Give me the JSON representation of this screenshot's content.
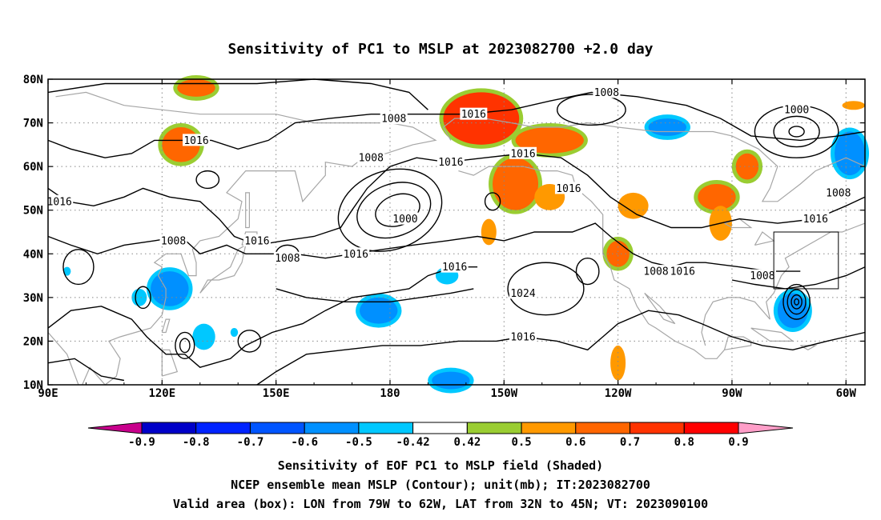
{
  "title": "Sensitivity of PC1 to MSLP at 2023082700 +2.0 day",
  "map": {
    "lon_range": [
      90,
      305
    ],
    "lat_range": [
      10,
      80
    ],
    "lon_ticks": [
      {
        "lon": 90,
        "label": "90E"
      },
      {
        "lon": 120,
        "label": "120E"
      },
      {
        "lon": 150,
        "label": "150E"
      },
      {
        "lon": 180,
        "label": "180"
      },
      {
        "lon": 210,
        "label": "150W"
      },
      {
        "lon": 240,
        "label": "120W"
      },
      {
        "lon": 270,
        "label": "90W"
      },
      {
        "lon": 300,
        "label": "60W"
      }
    ],
    "lat_ticks": [
      {
        "lat": 10,
        "label": "10N"
      },
      {
        "lat": 20,
        "label": "20N"
      },
      {
        "lat": 30,
        "label": "30N"
      },
      {
        "lat": 40,
        "label": "40N"
      },
      {
        "lat": 50,
        "label": "50N"
      },
      {
        "lat": 60,
        "label": "60N"
      },
      {
        "lat": 70,
        "label": "70N"
      },
      {
        "lat": 80,
        "label": "80N"
      }
    ],
    "gridlines": "dotted",
    "valid_box": {
      "lon_min": 281,
      "lon_max": 298,
      "lat_min": 32,
      "lat_max": 45
    },
    "contour_labels": [
      {
        "text": "1008",
        "lon": 181,
        "lat": 71
      },
      {
        "text": "1008",
        "lon": 123,
        "lat": 43
      },
      {
        "text": "1008",
        "lon": 153,
        "lat": 39
      },
      {
        "text": "1008",
        "lon": 175,
        "lat": 62
      },
      {
        "text": "1008",
        "lon": 237,
        "lat": 77
      },
      {
        "text": "1008",
        "lon": 250,
        "lat": 36
      },
      {
        "text": "1008",
        "lon": 278,
        "lat": 35
      },
      {
        "text": "1008",
        "lon": 298,
        "lat": 54
      },
      {
        "text": "1016",
        "lon": 129,
        "lat": 66
      },
      {
        "text": "1016",
        "lon": 93,
        "lat": 52
      },
      {
        "text": "1016",
        "lon": 145,
        "lat": 43
      },
      {
        "text": "1016",
        "lon": 171,
        "lat": 40
      },
      {
        "text": "1016",
        "lon": 202,
        "lat": 72
      },
      {
        "text": "1016",
        "lon": 196,
        "lat": 61
      },
      {
        "text": "1016",
        "lon": 215,
        "lat": 63
      },
      {
        "text": "1016",
        "lon": 227,
        "lat": 55
      },
      {
        "text": "1016",
        "lon": 197,
        "lat": 37
      },
      {
        "text": "1016",
        "lon": 215,
        "lat": 21
      },
      {
        "text": "1016",
        "lon": 257,
        "lat": 36
      },
      {
        "text": "1016",
        "lon": 292,
        "lat": 48
      },
      {
        "text": "1000",
        "lon": 184,
        "lat": 48
      },
      {
        "text": "1000",
        "lon": 287,
        "lat": 73
      },
      {
        "text": "1024",
        "lon": 215,
        "lat": 31
      }
    ],
    "shaded_regions": [
      {
        "lon": 125,
        "lat": 65,
        "rx": 5,
        "ry": 4,
        "value": 0.6
      },
      {
        "lon": 129,
        "lat": 78,
        "rx": 5,
        "ry": 2,
        "value": 0.6
      },
      {
        "lon": 204,
        "lat": 71,
        "rx": 10,
        "ry": 6,
        "value": 0.7
      },
      {
        "lon": 222,
        "lat": 66,
        "rx": 9,
        "ry": 3,
        "value": 0.6
      },
      {
        "lon": 213,
        "lat": 56,
        "rx": 6,
        "ry": 6,
        "value": 0.6
      },
      {
        "lon": 222,
        "lat": 53,
        "rx": 4,
        "ry": 3,
        "value": 0.5
      },
      {
        "lon": 244,
        "lat": 51,
        "rx": 4,
        "ry": 3,
        "value": 0.5
      },
      {
        "lon": 240,
        "lat": 40,
        "rx": 3,
        "ry": 3,
        "value": 0.6
      },
      {
        "lon": 266,
        "lat": 53,
        "rx": 5,
        "ry": 3,
        "value": 0.6
      },
      {
        "lon": 274,
        "lat": 60,
        "rx": 3,
        "ry": 3,
        "value": 0.6
      },
      {
        "lon": 267,
        "lat": 47,
        "rx": 3,
        "ry": 4,
        "value": 0.5
      },
      {
        "lon": 240,
        "lat": 15,
        "rx": 2,
        "ry": 4,
        "value": 0.5
      },
      {
        "lon": 302,
        "lat": 74,
        "rx": 3,
        "ry": 1,
        "value": 0.5
      },
      {
        "lon": 206,
        "lat": 45,
        "rx": 2,
        "ry": 3,
        "value": 0.5
      },
      {
        "lon": 122,
        "lat": 32,
        "rx": 5,
        "ry": 4,
        "value": -0.6
      },
      {
        "lon": 114,
        "lat": 30,
        "rx": 2,
        "ry": 2,
        "value": -0.5
      },
      {
        "lon": 131,
        "lat": 21,
        "rx": 3,
        "ry": 3,
        "value": -0.5
      },
      {
        "lon": 177,
        "lat": 27,
        "rx": 5,
        "ry": 3,
        "value": -0.6
      },
      {
        "lon": 195,
        "lat": 35,
        "rx": 3,
        "ry": 2,
        "value": -0.5
      },
      {
        "lon": 196,
        "lat": 11,
        "rx": 5,
        "ry": 2,
        "value": -0.6
      },
      {
        "lon": 253,
        "lat": 69,
        "rx": 5,
        "ry": 2,
        "value": -0.6
      },
      {
        "lon": 301,
        "lat": 63,
        "rx": 4,
        "ry": 5,
        "value": -0.6
      },
      {
        "lon": 286,
        "lat": 27,
        "rx": 4,
        "ry": 4,
        "value": -0.6
      },
      {
        "lon": 95,
        "lat": 36,
        "rx": 1,
        "ry": 1,
        "value": -0.5
      },
      {
        "lon": 139,
        "lat": 22,
        "rx": 1,
        "ry": 1,
        "value": -0.5
      }
    ]
  },
  "colorbar": {
    "labels": [
      "-0.9",
      "-0.8",
      "-0.7",
      "-0.6",
      "-0.5",
      "-0.42",
      "0.42",
      "0.5",
      "0.6",
      "0.7",
      "0.8",
      "0.9"
    ],
    "colors": [
      "#0000c8",
      "#0023ff",
      "#0055ff",
      "#0090ff",
      "#00c8ff",
      "#ffffff",
      "#9acd32",
      "#ff9900",
      "#ff6600",
      "#ff3300",
      "#ff0000"
    ],
    "low_color": "#c8008c",
    "high_color": "#ff9ec8"
  },
  "captions": {
    "line1": "Sensitivity of EOF PC1 to MSLP field (Shaded)",
    "line2": "NCEP ensemble mean MSLP (Contour); unit(mb); IT:2023082700",
    "line3": "Valid area (box): LON from 79W to 62W, LAT from 32N to 45N; VT: 2023090100"
  }
}
